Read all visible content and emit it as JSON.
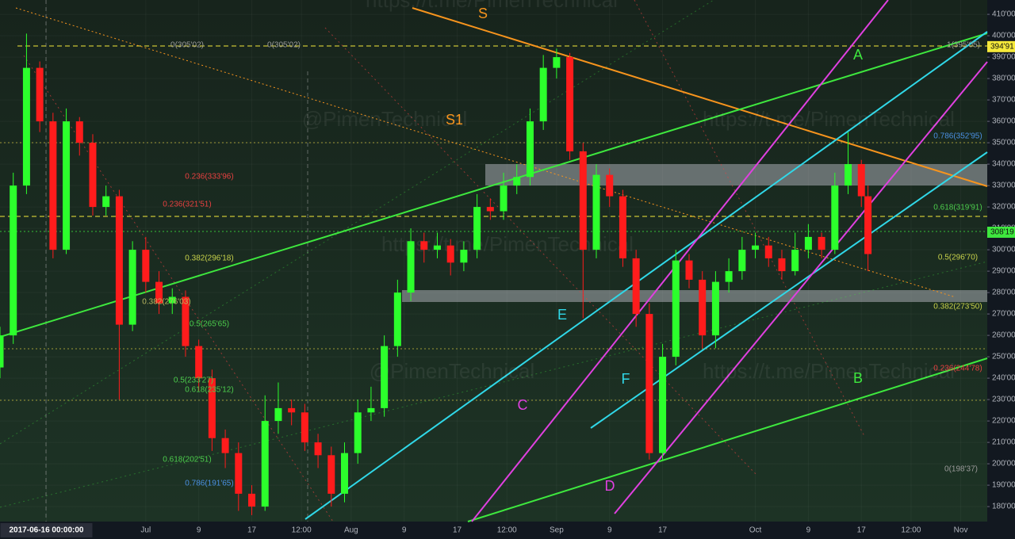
{
  "chart_data": {
    "type": "candlestick",
    "up_color": "#2cff2c",
    "down_color": "#ff1c1c",
    "grid": true,
    "x": [
      "2017-06-09",
      "2017-06-11",
      "2017-06-13",
      "2017-06-15",
      "2017-06-17",
      "2017-06-19",
      "2017-06-21",
      "2017-06-23",
      "2017-06-25",
      "2017-06-27",
      "2017-06-29",
      "2017-07-01",
      "2017-07-03",
      "2017-07-05",
      "2017-07-07",
      "2017-07-09",
      "2017-07-11",
      "2017-07-13",
      "2017-07-15",
      "2017-07-17",
      "2017-07-19",
      "2017-07-21",
      "2017-07-23",
      "2017-07-25",
      "2017-07-27",
      "2017-07-29",
      "2017-07-31",
      "2017-08-02",
      "2017-08-04",
      "2017-08-06",
      "2017-08-08",
      "2017-08-10",
      "2017-08-12",
      "2017-08-14",
      "2017-08-16",
      "2017-08-18",
      "2017-08-20",
      "2017-08-22",
      "2017-08-24",
      "2017-08-26",
      "2017-08-28",
      "2017-08-30",
      "2017-09-01",
      "2017-09-03",
      "2017-09-05",
      "2017-09-07",
      "2017-09-09",
      "2017-09-11",
      "2017-09-13",
      "2017-09-15",
      "2017-09-17",
      "2017-09-19",
      "2017-09-21",
      "2017-09-23",
      "2017-09-25",
      "2017-09-27",
      "2017-09-29",
      "2017-10-01",
      "2017-10-03",
      "2017-10-05",
      "2017-10-07",
      "2017-10-09",
      "2017-10-11",
      "2017-10-13",
      "2017-10-15",
      "2017-10-17",
      "2017-10-18"
    ],
    "open": [
      245,
      260,
      330,
      385,
      360,
      300,
      360,
      350,
      320,
      325,
      265,
      300,
      285,
      275,
      278,
      255,
      240,
      212,
      205,
      186,
      180,
      220,
      226,
      224,
      210,
      204,
      186,
      205,
      224,
      226,
      255,
      280,
      304,
      300,
      302,
      294,
      300,
      320,
      318,
      330,
      334,
      360,
      385,
      390,
      346,
      300,
      335,
      325,
      296,
      270,
      205,
      250,
      295,
      286,
      260,
      285,
      290,
      300,
      302,
      296,
      290,
      300,
      306,
      300,
      330,
      340,
      325
    ],
    "high": [
      264,
      336,
      401,
      388,
      364,
      366,
      362,
      354,
      330,
      328,
      304,
      306,
      290,
      282,
      281,
      258,
      244,
      216,
      210,
      190,
      232,
      238,
      230,
      228,
      214,
      208,
      210,
      230,
      236,
      260,
      286,
      310,
      308,
      308,
      305,
      304,
      326,
      324,
      336,
      340,
      366,
      391,
      394,
      392,
      350,
      340,
      338,
      328,
      300,
      275,
      256,
      300,
      298,
      290,
      290,
      296,
      306,
      308,
      306,
      300,
      308,
      312,
      308,
      336,
      355,
      342,
      330
    ],
    "low": [
      240,
      256,
      326,
      355,
      296,
      298,
      344,
      316,
      316,
      230,
      262,
      280,
      270,
      270,
      250,
      234,
      206,
      198,
      178,
      176,
      178,
      214,
      218,
      206,
      198,
      180,
      182,
      200,
      220,
      222,
      250,
      276,
      294,
      296,
      288,
      290,
      296,
      314,
      314,
      326,
      330,
      356,
      380,
      342,
      268,
      296,
      320,
      292,
      264,
      202,
      202,
      246,
      282,
      254,
      254,
      280,
      286,
      296,
      292,
      286,
      288,
      296,
      296,
      298,
      326,
      320,
      290
    ],
    "close": [
      260,
      330,
      385,
      360,
      300,
      360,
      350,
      320,
      325,
      265,
      300,
      285,
      275,
      278,
      255,
      240,
      212,
      205,
      186,
      180,
      220,
      226,
      224,
      210,
      204,
      186,
      205,
      224,
      226,
      255,
      280,
      304,
      300,
      302,
      294,
      300,
      320,
      318,
      330,
      334,
      360,
      385,
      390,
      346,
      300,
      335,
      325,
      296,
      270,
      205,
      250,
      295,
      286,
      260,
      285,
      290,
      300,
      302,
      296,
      290,
      300,
      306,
      300,
      330,
      340,
      325,
      298
    ],
    "xlim": [
      "2017-06-09",
      "2017-11-05"
    ],
    "xticks": [
      {
        "value": "2017-06-16",
        "label": "2017-06-16 00:00:00"
      },
      {
        "value": "2017-07-01",
        "label": "Jul"
      },
      {
        "value": "2017-07-09",
        "label": "9"
      },
      {
        "value": "2017-07-17",
        "label": "17"
      },
      {
        "value": "2017-07-24T12:00",
        "label": "12:00"
      },
      {
        "value": "2017-08-01",
        "label": "Aug"
      },
      {
        "value": "2017-08-09",
        "label": "9"
      },
      {
        "value": "2017-08-17",
        "label": "17"
      },
      {
        "value": "2017-08-24T12:00",
        "label": "12:00"
      },
      {
        "value": "2017-09-01",
        "label": "Sep"
      },
      {
        "value": "2017-09-09",
        "label": "9"
      },
      {
        "value": "2017-09-17",
        "label": "17"
      },
      {
        "value": "2017-10-01",
        "label": "Oct"
      },
      {
        "value": "2017-10-09",
        "label": "9"
      },
      {
        "value": "2017-10-17",
        "label": "17"
      },
      {
        "value": "2017-10-24T12:00",
        "label": "12:00"
      },
      {
        "value": "2017-11-01",
        "label": "Nov"
      }
    ],
    "ylim": [
      173,
      416.7
    ],
    "yticks": [
      {
        "value": 180,
        "label": "180'00"
      },
      {
        "value": 190,
        "label": "190'00"
      },
      {
        "value": 200,
        "label": "200'00"
      },
      {
        "value": 210,
        "label": "210'00"
      },
      {
        "value": 220,
        "label": "220'00"
      },
      {
        "value": 230,
        "label": "230'00"
      },
      {
        "value": 240,
        "label": "240'00"
      },
      {
        "value": 250,
        "label": "250'00"
      },
      {
        "value": 260,
        "label": "260'00"
      },
      {
        "value": 270,
        "label": "270'00"
      },
      {
        "value": 280,
        "label": "280'00"
      },
      {
        "value": 290,
        "label": "290'00"
      },
      {
        "value": 300,
        "label": "300'00"
      },
      {
        "value": 310,
        "label": "310'00"
      },
      {
        "value": 320,
        "label": "320'00"
      },
      {
        "value": 330,
        "label": "330'00"
      },
      {
        "value": 340,
        "label": "340'00"
      },
      {
        "value": 350,
        "label": "350'00"
      },
      {
        "value": 360,
        "label": "360'00"
      },
      {
        "value": 370,
        "label": "370'00"
      },
      {
        "value": 380,
        "label": "380'00"
      },
      {
        "value": 390,
        "label": "390'00"
      },
      {
        "value": 400,
        "label": "400'00"
      },
      {
        "value": 410,
        "label": "410'00"
      }
    ],
    "price_labels": [
      {
        "value": 394.91,
        "label": "394'91",
        "color": "#f5e93a"
      },
      {
        "value": 308.19,
        "label": "308'19",
        "color": "#3ee83e"
      }
    ],
    "annotations": [
      {
        "text": "0(305'02)",
        "color": "#9a9a9a"
      },
      {
        "text": "0(305'02)",
        "color": "#9a9a9a"
      },
      {
        "text": "1(395'05)",
        "color": "#9a9a9a"
      },
      {
        "text": "0.236(333'96)",
        "color": "#e84040"
      },
      {
        "text": "0.236(321'51)",
        "color": "#e84040"
      },
      {
        "text": "0.382(296'18)",
        "color": "#c8d24a"
      },
      {
        "text": "0.382(276'03)",
        "color": "#b8b860"
      },
      {
        "text": "0.5(265'65)",
        "color": "#4ccc4c"
      },
      {
        "text": "0.5(233'27)",
        "color": "#4ccc4c"
      },
      {
        "text": "0.618(235'12)",
        "color": "#4ccc4c"
      },
      {
        "text": "0.618(202'51)",
        "color": "#4ccc4c"
      },
      {
        "text": "0.786(191'65)",
        "color": "#4a90e2"
      },
      {
        "text": "0.786(352'95)",
        "color": "#4a90e2"
      },
      {
        "text": "0.618(319'91)",
        "color": "#4ccc4c"
      },
      {
        "text": "0.5(296'70)",
        "color": "#c8d24a"
      },
      {
        "text": "0.382(273'50)",
        "color": "#c8d24a"
      },
      {
        "text": "0.236(244'78)",
        "color": "#e84040"
      },
      {
        "text": "0(198'37)",
        "color": "#9a9a9a"
      },
      {
        "text": "S",
        "color": "#f7941d"
      },
      {
        "text": "S1",
        "color": "#f7941d"
      },
      {
        "text": "A",
        "color": "#3ee83e"
      },
      {
        "text": "B",
        "color": "#3ee83e"
      },
      {
        "text": "C",
        "color": "#e040e0"
      },
      {
        "text": "D",
        "color": "#e040e0"
      },
      {
        "text": "E",
        "color": "#30d8e8"
      },
      {
        "text": "F",
        "color": "#30d8e8"
      }
    ],
    "watermarks": [
      "https://t.me/PimenTechnical",
      "@PimenTechnical",
      "https://t.me/PimenTechnical",
      "https://t.me/PimenTechnical",
      "@PimenTechnical",
      "https://t.me/PimenTechnical"
    ]
  }
}
